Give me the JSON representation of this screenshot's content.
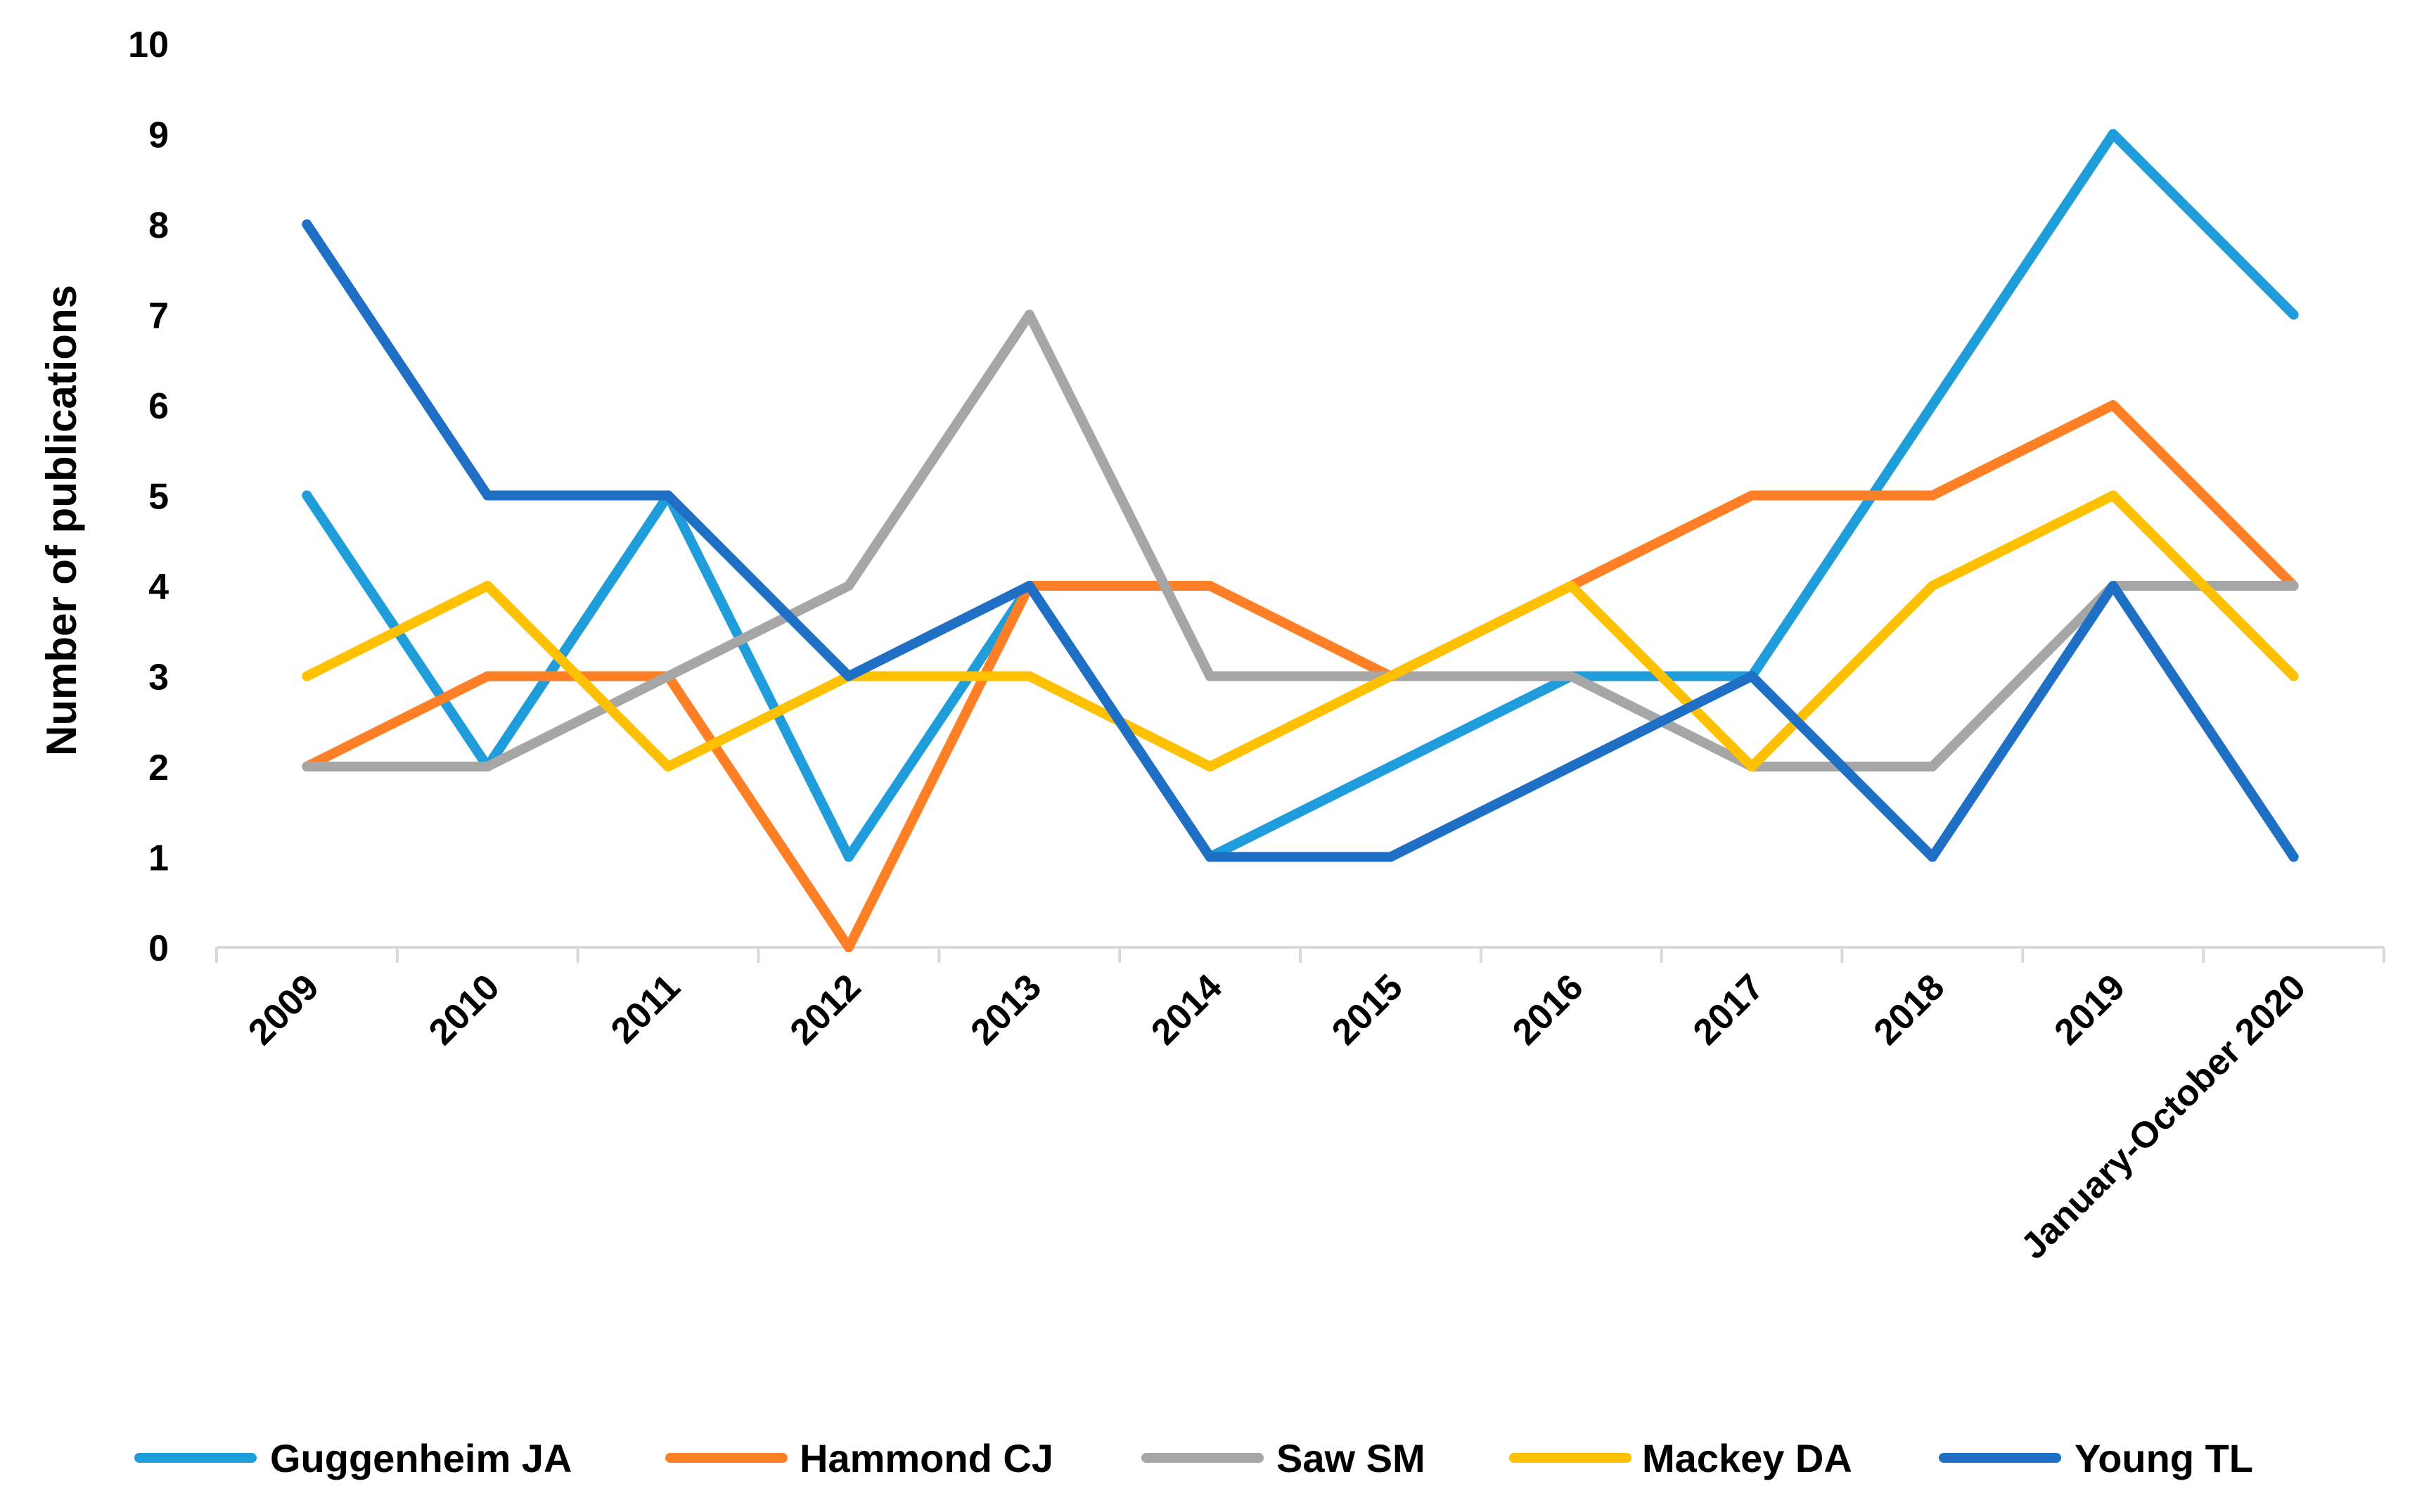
{
  "chart_data": {
    "type": "line",
    "title": "",
    "xlabel": "",
    "ylabel": "Number of publications",
    "ylim": [
      0,
      10
    ],
    "yticks": [
      0,
      1,
      2,
      3,
      4,
      5,
      6,
      7,
      8,
      9,
      10
    ],
    "grid": false,
    "legend_position": "bottom",
    "categories": [
      "2009",
      "2010",
      "2011",
      "2012",
      "2013",
      "2014",
      "2015",
      "2016",
      "2017",
      "2018",
      "2019",
      "January-October 2020"
    ],
    "series": [
      {
        "name": "Guggenheim JA",
        "color": "#1F9DDB",
        "values": [
          5,
          2,
          5,
          1,
          4,
          1,
          2,
          3,
          3,
          6,
          9,
          7
        ]
      },
      {
        "name": "Hammond CJ",
        "color": "#FF7F27",
        "values": [
          2,
          3,
          3,
          0,
          4,
          4,
          3,
          4,
          5,
          5,
          6,
          4
        ]
      },
      {
        "name": "Saw SM",
        "color": "#A6A6A6",
        "values": [
          2,
          2,
          3,
          4,
          7,
          3,
          3,
          3,
          2,
          2,
          4,
          4
        ]
      },
      {
        "name": "Mackey DA",
        "color": "#FFC000",
        "values": [
          3,
          4,
          2,
          3,
          3,
          2,
          3,
          4,
          2,
          4,
          5,
          3
        ]
      },
      {
        "name": "Young TL",
        "color": "#1F6FC5",
        "values": [
          8,
          5,
          5,
          3,
          4,
          1,
          1,
          2,
          3,
          1,
          4,
          1
        ]
      }
    ]
  }
}
